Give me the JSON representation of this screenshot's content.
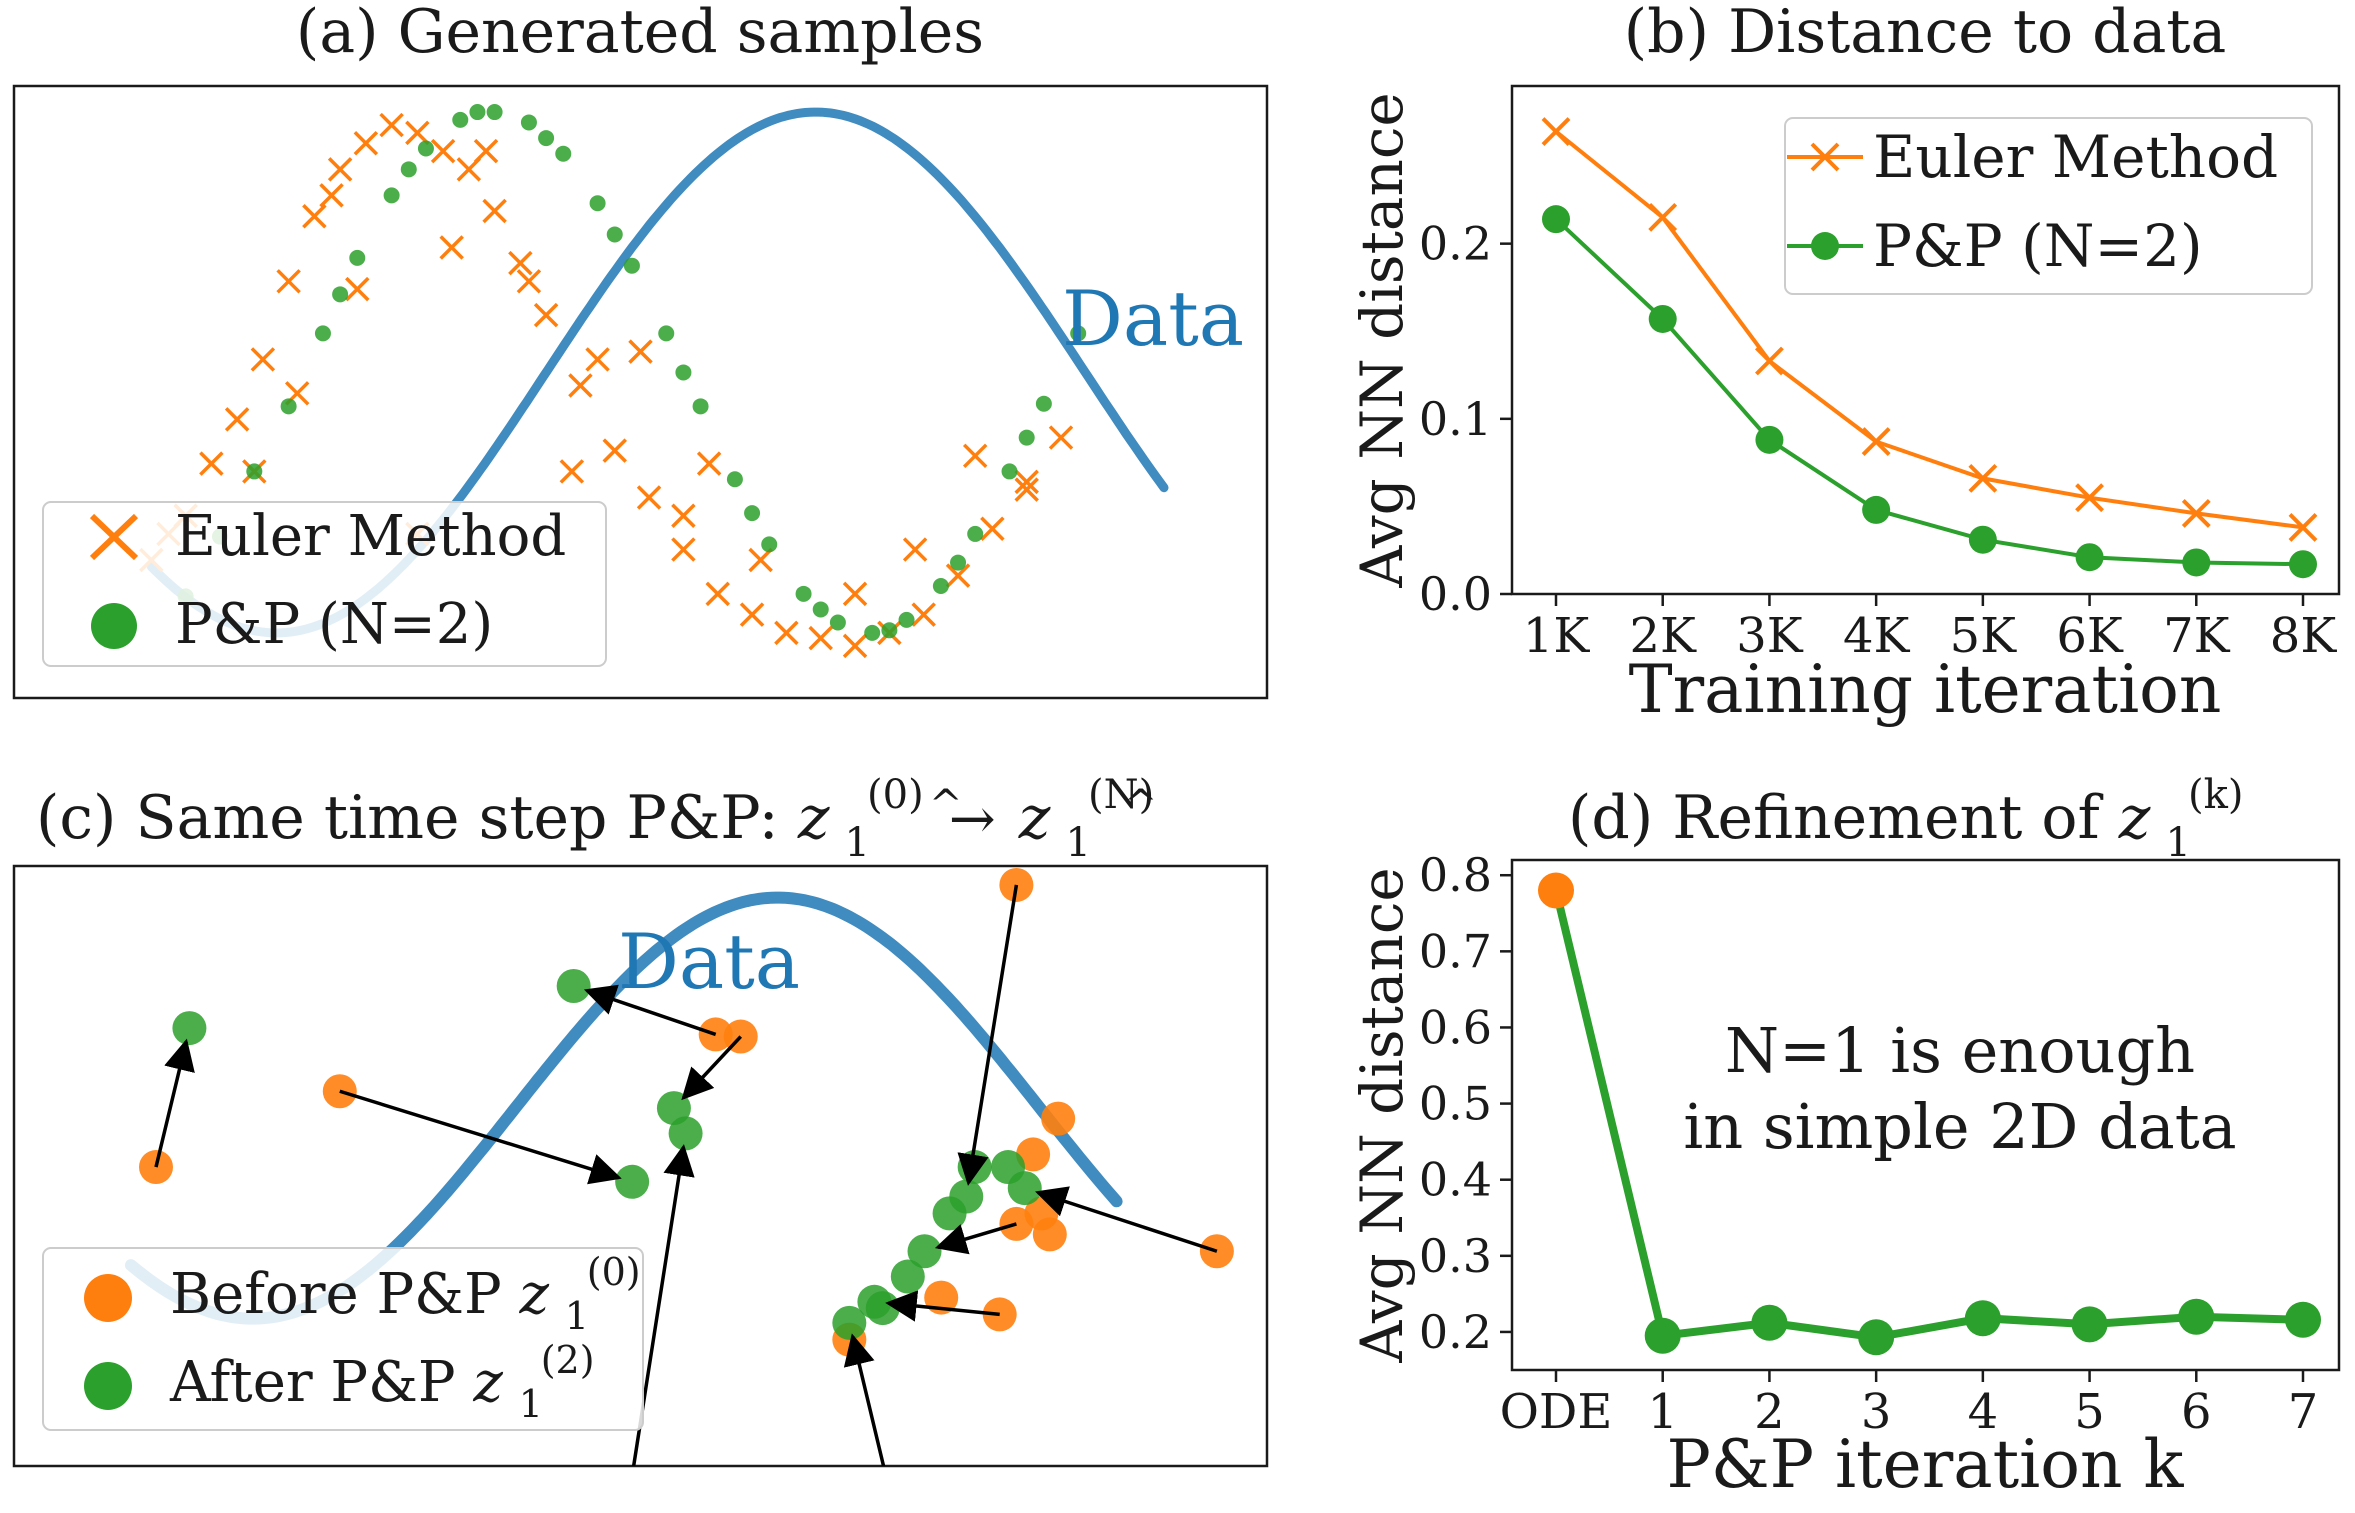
{
  "colors": {
    "orange": "#ff7f0e",
    "green": "#2ca02c",
    "blue": "#1f77b4",
    "axis": "#1a1a1a",
    "legend_border": "#cccccc"
  },
  "chart_data": [
    {
      "id": "a",
      "type": "scatter",
      "title": "(a) Generated samples",
      "xlabel": "",
      "ylabel": "",
      "annotation": "Data",
      "data_curve": "y = sin(x), x in [-2.3, 3.6]",
      "legend": {
        "placement": "lower-left",
        "entries": [
          "Euler Method",
          "P&P (N=2)"
        ]
      },
      "xlim": [
        -3.1,
        4.2
      ],
      "ylim": [
        -1.25,
        1.1
      ],
      "series": [
        {
          "name": "Euler Method",
          "marker": "x",
          "points": [
            [
              -2.3,
              -0.72
            ],
            [
              -2.2,
              -0.62
            ],
            [
              -2.1,
              -0.55
            ],
            [
              -1.95,
              -0.35
            ],
            [
              -1.8,
              -0.18
            ],
            [
              -1.65,
              0.05
            ],
            [
              -1.5,
              0.35
            ],
            [
              -1.35,
              0.6
            ],
            [
              -1.2,
              0.78
            ],
            [
              -1.05,
              0.88
            ],
            [
              -0.9,
              0.95
            ],
            [
              -0.75,
              0.92
            ],
            [
              -0.6,
              0.85
            ],
            [
              -0.45,
              0.78
            ],
            [
              -0.3,
              0.62
            ],
            [
              -0.15,
              0.42
            ],
            [
              0.0,
              0.22
            ],
            [
              0.2,
              -0.05
            ],
            [
              0.4,
              -0.3
            ],
            [
              0.6,
              -0.48
            ],
            [
              0.8,
              -0.68
            ],
            [
              1.0,
              -0.85
            ],
            [
              1.2,
              -0.93
            ],
            [
              1.4,
              -1.0
            ],
            [
              1.6,
              -1.02
            ],
            [
              1.8,
              -1.05
            ],
            [
              2.0,
              -1.0
            ],
            [
              2.2,
              -0.93
            ],
            [
              2.4,
              -0.78
            ],
            [
              2.6,
              -0.6
            ],
            [
              2.8,
              -0.42
            ],
            [
              3.0,
              -0.25
            ],
            [
              -1.1,
              0.32
            ],
            [
              -0.55,
              0.48
            ],
            [
              -0.35,
              0.85
            ],
            [
              -1.45,
              -0.08
            ],
            [
              -1.7,
              -0.38
            ],
            [
              -0.75,
              -0.62
            ],
            [
              0.15,
              -0.38
            ],
            [
              0.95,
              -0.35
            ],
            [
              1.25,
              -0.72
            ],
            [
              0.55,
              0.08
            ],
            [
              0.3,
              0.05
            ],
            [
              -0.1,
              0.35
            ],
            [
              2.15,
              -0.68
            ],
            [
              2.5,
              -0.32
            ],
            [
              2.8,
              -0.45
            ],
            [
              0.8,
              -0.55
            ],
            [
              -1.25,
              0.68
            ],
            [
              1.8,
              -0.85
            ]
          ]
        },
        {
          "name": "P&P (N=2)",
          "marker": "o",
          "points": [
            [
              -2.1,
              -0.86
            ],
            [
              -1.9,
              -0.63
            ],
            [
              -1.7,
              -0.38
            ],
            [
              -1.5,
              -0.13
            ],
            [
              -1.3,
              0.15
            ],
            [
              -1.1,
              0.44
            ],
            [
              -0.9,
              0.68
            ],
            [
              -0.7,
              0.86
            ],
            [
              -0.5,
              0.97
            ],
            [
              -0.3,
              1.0
            ],
            [
              -0.1,
              0.96
            ],
            [
              0.1,
              0.84
            ],
            [
              0.3,
              0.65
            ],
            [
              0.5,
              0.41
            ],
            [
              0.7,
              0.15
            ],
            [
              0.9,
              -0.13
            ],
            [
              1.1,
              -0.41
            ],
            [
              1.3,
              -0.66
            ],
            [
              1.5,
              -0.85
            ],
            [
              1.7,
              -0.96
            ],
            [
              1.9,
              -1.0
            ],
            [
              2.1,
              -0.95
            ],
            [
              2.3,
              -0.82
            ],
            [
              2.5,
              -0.62
            ],
            [
              2.7,
              -0.38
            ],
            [
              2.9,
              -0.12
            ],
            [
              3.1,
              0.15
            ],
            [
              -1.2,
              0.3
            ],
            [
              -0.8,
              0.78
            ],
            [
              -0.4,
              1.0
            ],
            [
              0.0,
              0.9
            ],
            [
              0.4,
              0.53
            ],
            [
              0.8,
              0.0
            ],
            [
              1.2,
              -0.54
            ],
            [
              1.6,
              -0.91
            ],
            [
              2.0,
              -0.99
            ],
            [
              2.4,
              -0.73
            ],
            [
              2.8,
              -0.25
            ]
          ]
        }
      ]
    },
    {
      "id": "b",
      "type": "line",
      "title": "(b) Distance to data",
      "xlabel": "Training iteration",
      "ylabel": "Avg NN distance",
      "legend": {
        "placement": "top-right",
        "entries": [
          "Euler Method",
          "P&P (N=2)"
        ]
      },
      "categories": [
        "1K",
        "2K",
        "3K",
        "4K",
        "5K",
        "6K",
        "7K",
        "8K"
      ],
      "ylim": [
        0.0,
        0.29
      ],
      "yticks": [
        "0.0",
        "0.1",
        "0.2"
      ],
      "series": [
        {
          "name": "Euler Method",
          "marker": "x",
          "values": [
            0.264,
            0.215,
            0.133,
            0.087,
            0.066,
            0.055,
            0.046,
            0.038
          ]
        },
        {
          "name": "P&P (N=2)",
          "marker": "o",
          "values": [
            0.214,
            0.157,
            0.088,
            0.048,
            0.031,
            0.021,
            0.018,
            0.017
          ]
        }
      ]
    },
    {
      "id": "c",
      "type": "scatter",
      "title": "(c) Same time step P&P: ",
      "title_math": {
        "from": "z",
        "from_sup": "(0)",
        "arrow": "→",
        "to": "z",
        "to_sup": "(N)",
        "sub": "1"
      },
      "annotation": "Data",
      "legend": {
        "placement": "lower-left",
        "entries": [
          {
            "label": "Before P&P ",
            "z": "z",
            "sup": "(0)",
            "sub": "1"
          },
          {
            "label": "After P&P ",
            "z": "z",
            "sup": "(2)",
            "sub": "1"
          }
        ]
      },
      "xlim": [
        -3.0,
        4.5
      ],
      "ylim": [
        -1.7,
        1.15
      ],
      "data_curve": "y = sin(x), x in [-2.3, 3.6]",
      "arrows": [
        {
          "before": [
            -2.15,
            -0.28
          ],
          "after": [
            -1.95,
            0.38
          ]
        },
        {
          "before": [
            -1.05,
            0.08
          ],
          "after": [
            0.7,
            -0.35
          ]
        },
        {
          "before": [
            1.2,
            0.35
          ],
          "after": [
            0.35,
            0.58
          ]
        },
        {
          "before": [
            1.35,
            0.34
          ],
          "after": [
            0.95,
            0.0
          ]
        },
        {
          "before": [
            3.0,
            1.06
          ],
          "after": [
            2.7,
            -0.42
          ]
        },
        {
          "before": [
            4.2,
            -0.68
          ],
          "after": [
            3.05,
            -0.38
          ]
        },
        {
          "before": [
            2.9,
            -0.98
          ],
          "after": [
            2.15,
            -0.92
          ]
        },
        {
          "before": [
            0.65,
            -2.0
          ],
          "after": [
            1.02,
            -0.12
          ]
        },
        {
          "before": [
            2.28,
            -1.95
          ],
          "after": [
            2.0,
            -1.02
          ]
        },
        {
          "before": [
            3.0,
            -0.55
          ],
          "after": [
            2.45,
            -0.68
          ]
        }
      ],
      "extra_before": [
        [
          3.1,
          -0.22
        ],
        [
          3.25,
          -0.05
        ],
        [
          2.0,
          -1.1
        ],
        [
          3.2,
          -0.6
        ],
        [
          2.55,
          -0.9
        ],
        [
          3.15,
          -0.5
        ]
      ],
      "extra_after": [
        [
          2.2,
          -0.95
        ],
        [
          2.35,
          -0.8
        ],
        [
          2.6,
          -0.5
        ],
        [
          2.75,
          -0.28
        ],
        [
          2.95,
          -0.28
        ]
      ]
    },
    {
      "id": "d",
      "type": "line",
      "title": "(d) Refinement of ",
      "title_math": {
        "z": "z",
        "sup": "(k)",
        "sub": "1"
      },
      "xlabel": "P&P iteration k",
      "ylabel": "Avg NN distance",
      "annotation_lines": [
        "N=1 is enough",
        "in simple 2D data"
      ],
      "categories": [
        "ODE",
        "1",
        "2",
        "3",
        "4",
        "5",
        "6",
        "7"
      ],
      "ylim": [
        0.15,
        0.82
      ],
      "yticks": [
        "0.2",
        "0.3",
        "0.4",
        "0.5",
        "0.6",
        "0.7",
        "0.8"
      ],
      "series": [
        {
          "name": "P&P",
          "values": [
            0.78,
            0.195,
            0.212,
            0.193,
            0.218,
            0.21,
            0.22,
            0.216
          ]
        }
      ]
    }
  ]
}
